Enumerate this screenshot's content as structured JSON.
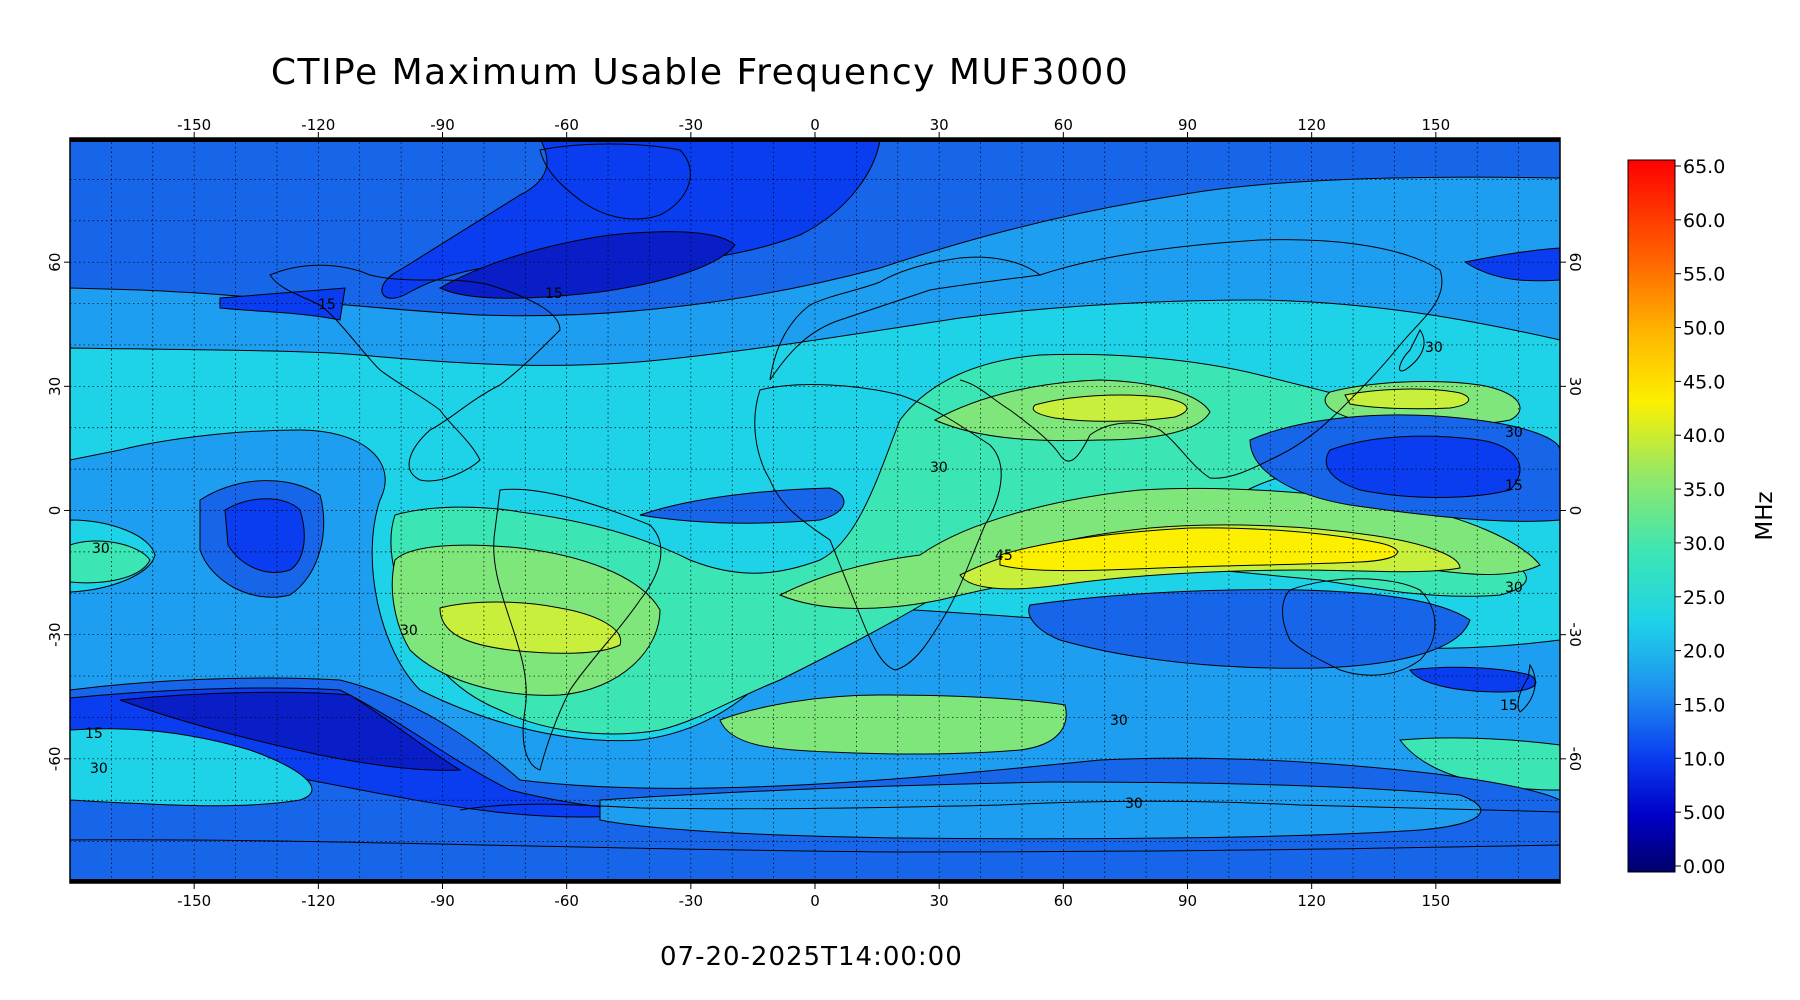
{
  "title": "CTIPe Maximum Usable Frequency MUF3000",
  "timestamp": "07-20-2025T14:00:00",
  "map": {
    "projection": "cylindrical equidistant",
    "lon_ticks": [
      "-150",
      "-120",
      "-90",
      "-60",
      "-30",
      "0",
      "30",
      "60",
      "90",
      "120",
      "150"
    ],
    "lat_ticks": [
      "60",
      "30",
      "0",
      "-30",
      "-60"
    ],
    "grid": "dotted, every 10 degrees",
    "contour_labels": [
      "15",
      "15",
      "15",
      "15",
      "15",
      "30",
      "30",
      "30",
      "30",
      "30",
      "30",
      "30",
      "30",
      "30",
      "45"
    ]
  },
  "colorbar": {
    "unit": "MHz",
    "ticks": [
      "65.0",
      "60.0",
      "55.0",
      "50.0",
      "45.0",
      "40.0",
      "35.0",
      "30.0",
      "25.0",
      "20.0",
      "15.0",
      "10.0",
      "5.00",
      "0.00"
    ]
  },
  "colors": {
    "level_5": "#0a1ec8",
    "level_10": "#0a3cf0",
    "level_15": "#1766ea",
    "level_20": "#1e9ef0",
    "level_25": "#1ed2e8",
    "level_30": "#3ce6b4",
    "level_35": "#7ee67a",
    "level_40": "#c8ef3c",
    "level_45": "#fcf000"
  }
}
